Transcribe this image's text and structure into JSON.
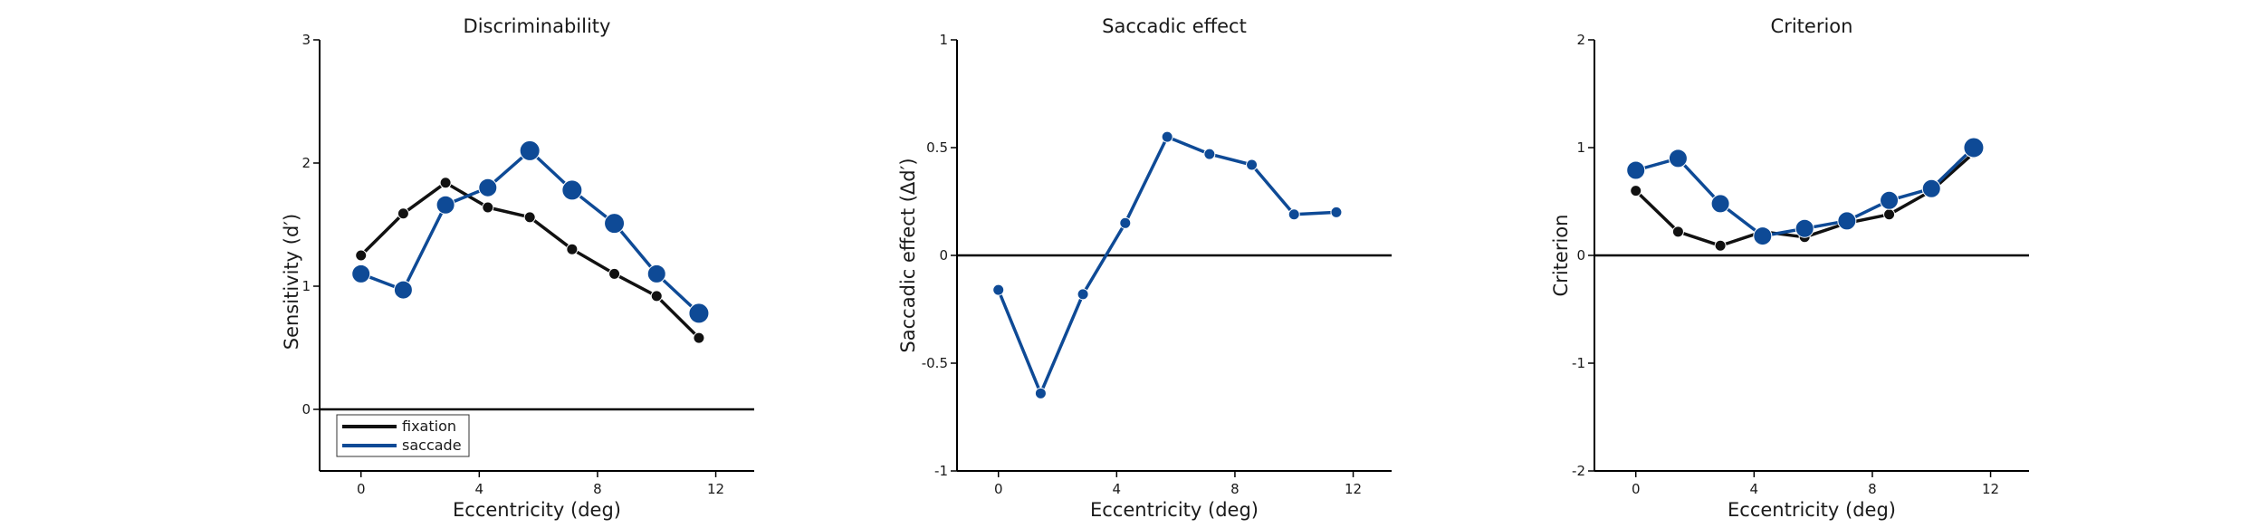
{
  "colors": {
    "fixation": "#111111",
    "saccade": "#0e4a96",
    "axis": "#000000"
  },
  "chart_data": [
    {
      "type": "line",
      "title": "Discriminability",
      "xlabel": "Eccentricity (deg)",
      "ylabel": "Sensitivity (d′)",
      "xlim": [
        -1.4,
        13.3
      ],
      "ylim": [
        -0.5,
        3
      ],
      "xticks": [
        0,
        4,
        8,
        12
      ],
      "yticks": [
        0,
        1,
        2,
        3
      ],
      "xtick_labels": [
        "0",
        "4",
        "8",
        "12"
      ],
      "ytick_labels": [
        "0",
        "1",
        "2",
        "3"
      ],
      "zero_line": true,
      "legend": {
        "position": "bottom-left",
        "entries": [
          "fixation",
          "saccade"
        ]
      },
      "series": [
        {
          "name": "fixation",
          "color": "#111111",
          "x": [
            0,
            1.43,
            2.86,
            4.29,
            5.71,
            7.14,
            8.57,
            10,
            11.43
          ],
          "y": [
            1.25,
            1.59,
            1.84,
            1.64,
            1.56,
            1.3,
            1.1,
            0.92,
            0.58
          ],
          "marker_size": [
            6,
            6,
            6,
            6,
            6,
            6,
            6,
            6,
            6
          ]
        },
        {
          "name": "saccade",
          "color": "#0e4a96",
          "x": [
            0,
            1.43,
            2.86,
            4.29,
            5.71,
            7.14,
            8.57,
            10,
            11.43
          ],
          "y": [
            1.1,
            0.97,
            1.66,
            1.8,
            2.1,
            1.78,
            1.51,
            1.1,
            0.78
          ],
          "marker_size": [
            10,
            10,
            10,
            10,
            11,
            11,
            11,
            10,
            11
          ]
        }
      ]
    },
    {
      "type": "line",
      "title": "Saccadic effect",
      "xlabel": "Eccentricity (deg)",
      "ylabel": "Saccadic effect (Δd′)",
      "xlim": [
        -1.4,
        13.3
      ],
      "ylim": [
        -1,
        1
      ],
      "xticks": [
        0,
        4,
        8,
        12
      ],
      "yticks": [
        -1,
        -0.5,
        0,
        0.5,
        1
      ],
      "xtick_labels": [
        "0",
        "4",
        "8",
        "12"
      ],
      "ytick_labels": [
        "-1",
        "-0.5",
        "0",
        "0.5",
        "1"
      ],
      "zero_line": true,
      "series": [
        {
          "color": "#0e4a96",
          "x": [
            0,
            1.43,
            2.86,
            4.29,
            5.71,
            7.14,
            8.57,
            10,
            11.43
          ],
          "y": [
            -0.16,
            -0.64,
            -0.18,
            0.15,
            0.55,
            0.47,
            0.42,
            0.19,
            0.2
          ],
          "marker_size": [
            6,
            6,
            6,
            6,
            6,
            6,
            6,
            6,
            6
          ]
        }
      ]
    },
    {
      "type": "line",
      "title": "Criterion",
      "xlabel": "Eccentricity (deg)",
      "ylabel": "Criterion",
      "xlim": [
        -1.4,
        13.3
      ],
      "ylim": [
        -2,
        2
      ],
      "xticks": [
        0,
        4,
        8,
        12
      ],
      "yticks": [
        -2,
        -1,
        0,
        1,
        2
      ],
      "xtick_labels": [
        "0",
        "4",
        "8",
        "12"
      ],
      "ytick_labels": [
        "-2",
        "-1",
        "0",
        "1",
        "2"
      ],
      "zero_line": true,
      "series": [
        {
          "name": "fixation",
          "color": "#111111",
          "x": [
            0,
            1.43,
            2.86,
            4.29,
            5.71,
            7.14,
            8.57,
            10,
            11.43
          ],
          "y": [
            0.6,
            0.22,
            0.09,
            0.22,
            0.17,
            0.3,
            0.38,
            0.6,
            0.95
          ],
          "marker_size": [
            6,
            6,
            6,
            6,
            6,
            6,
            6,
            6,
            6
          ]
        },
        {
          "name": "saccade",
          "color": "#0e4a96",
          "x": [
            0,
            1.43,
            2.86,
            4.29,
            5.71,
            7.14,
            8.57,
            10,
            11.43
          ],
          "y": [
            0.79,
            0.9,
            0.48,
            0.18,
            0.25,
            0.32,
            0.51,
            0.62,
            1.0
          ],
          "marker_size": [
            10,
            10,
            10,
            10,
            10,
            10,
            10,
            10,
            11
          ]
        }
      ]
    }
  ]
}
